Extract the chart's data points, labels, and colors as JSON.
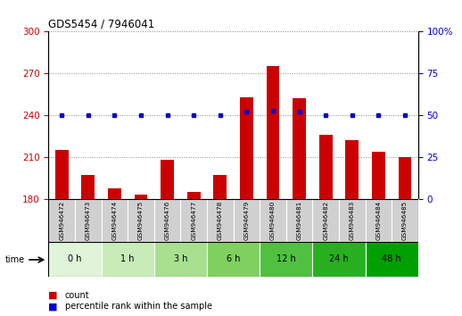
{
  "title": "GDS5454 / 7946041",
  "samples": [
    "GSM946472",
    "GSM946473",
    "GSM946474",
    "GSM946475",
    "GSM946476",
    "GSM946477",
    "GSM946478",
    "GSM946479",
    "GSM946480",
    "GSM946481",
    "GSM946482",
    "GSM946483",
    "GSM946484",
    "GSM946485"
  ],
  "counts": [
    215,
    197,
    188,
    183,
    208,
    185,
    197,
    253,
    275,
    252,
    226,
    222,
    214,
    210
  ],
  "percentile_ranks": [
    50,
    50,
    50,
    50,
    50,
    50,
    50,
    52,
    53,
    52,
    50,
    50,
    50,
    50
  ],
  "ylim_left": [
    180,
    300
  ],
  "ylim_right": [
    0,
    100
  ],
  "yticks_left": [
    180,
    210,
    240,
    270,
    300
  ],
  "yticks_right": [
    0,
    25,
    50,
    75,
    100
  ],
  "bar_color": "#cc0000",
  "dot_color": "#0000cc",
  "grid_color": "#888888",
  "label_count": "count",
  "label_percentile": "percentile rank within the sample",
  "time_label": "time",
  "group_info": [
    {
      "label": "0 h",
      "start": 0,
      "end": 1,
      "color": "#e0f4d8"
    },
    {
      "label": "1 h",
      "start": 2,
      "end": 3,
      "color": "#c8ecb8"
    },
    {
      "label": "3 h",
      "start": 4,
      "end": 5,
      "color": "#a8e090"
    },
    {
      "label": "6 h",
      "start": 6,
      "end": 7,
      "color": "#80d060"
    },
    {
      "label": "12 h",
      "start": 8,
      "end": 9,
      "color": "#50c040"
    },
    {
      "label": "24 h",
      "start": 10,
      "end": 11,
      "color": "#28b020"
    },
    {
      "label": "48 h",
      "start": 12,
      "end": 13,
      "color": "#00a000"
    }
  ],
  "sample_box_color": "#d0d0d0"
}
